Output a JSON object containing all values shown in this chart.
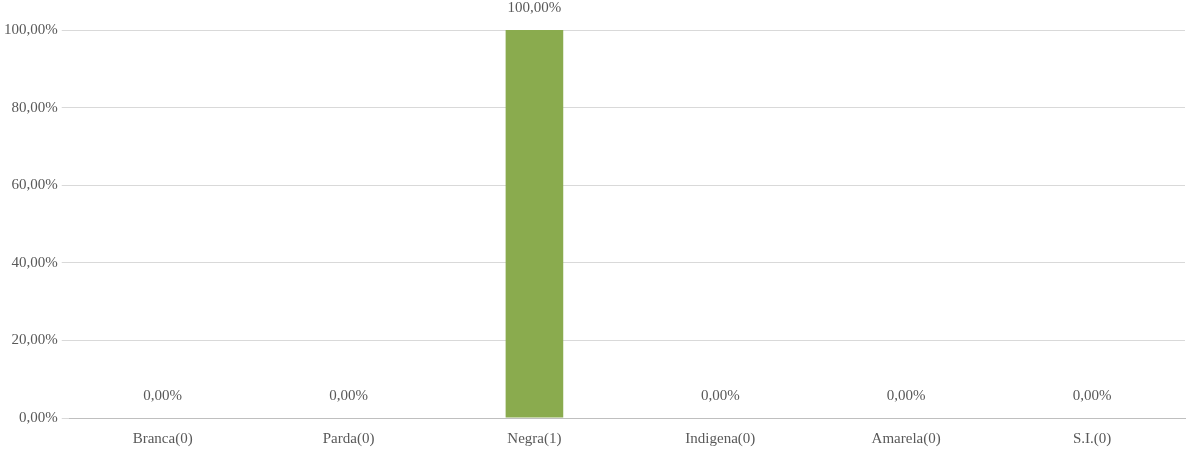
{
  "chart_data": {
    "type": "bar",
    "categories": [
      "Branca(0)",
      "Parda(0)",
      "Negra(1)",
      "Indigena(0)",
      "Amarela(0)",
      "S.I.(0)"
    ],
    "values": [
      0,
      0,
      100,
      0,
      0,
      0
    ],
    "color": "#8aab4e",
    "value_labels": [
      "0,00%",
      "0,00%",
      "100,00%",
      "0,00%",
      "0,00%",
      "0,00%"
    ],
    "ylim": [
      0,
      100
    ],
    "yticks": [
      {
        "value": 0,
        "label": "0,00%"
      },
      {
        "value": 20,
        "label": "20,00%"
      },
      {
        "value": 40,
        "label": "40,00%"
      },
      {
        "value": 60,
        "label": "60,00%"
      },
      {
        "value": 80,
        "label": "80,00%"
      },
      {
        "value": 100,
        "label": "100,00%"
      }
    ],
    "grid": "y",
    "legend": false
  }
}
